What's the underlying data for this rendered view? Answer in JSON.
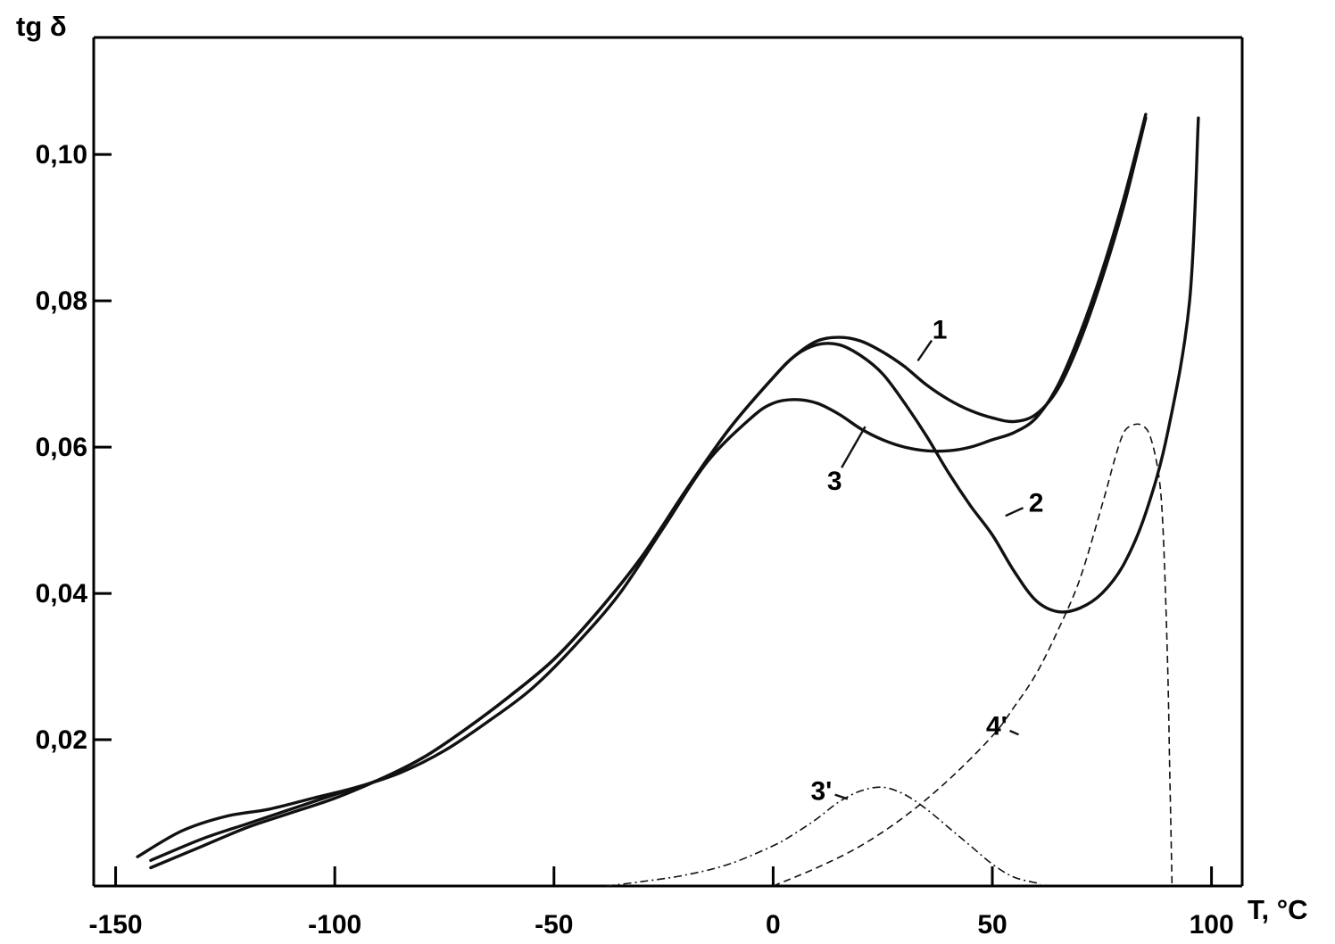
{
  "chart_data": {
    "type": "line",
    "title": "",
    "xlabel": "T, °C",
    "ylabel": "tg δ",
    "xlim": [
      -155,
      107
    ],
    "ylim": [
      0,
      0.116
    ],
    "x_ticks": [
      -150,
      -100,
      -50,
      0,
      50,
      100
    ],
    "x_tick_labels": [
      "-150",
      "-100",
      "-50",
      "0",
      "50",
      "100"
    ],
    "y_ticks": [
      0.02,
      0.04,
      0.06,
      0.08,
      0.1
    ],
    "y_tick_labels": [
      "0,02",
      "0,04",
      "0,06",
      "0,08",
      "0,10"
    ],
    "grid": false,
    "legend": "none",
    "series": [
      {
        "label": "1",
        "style": "solid",
        "x": [
          -142,
          -130,
          -120,
          -110,
          -100,
          -90,
          -80,
          -70,
          -60,
          -50,
          -40,
          -30,
          -20,
          -10,
          0,
          5,
          10,
          15,
          20,
          25,
          30,
          35,
          40,
          45,
          50,
          55,
          60,
          65,
          70,
          75,
          80,
          85
        ],
        "y": [
          0.0035,
          0.0065,
          0.0085,
          0.0105,
          0.0125,
          0.0145,
          0.0175,
          0.0215,
          0.026,
          0.031,
          0.0375,
          0.045,
          0.054,
          0.0625,
          0.0695,
          0.0725,
          0.0745,
          0.075,
          0.0745,
          0.073,
          0.071,
          0.0685,
          0.0665,
          0.065,
          0.064,
          0.0635,
          0.0645,
          0.068,
          0.0745,
          0.083,
          0.093,
          0.105
        ]
      },
      {
        "label": "2",
        "style": "solid",
        "x": [
          -142,
          -130,
          -120,
          -110,
          -100,
          -90,
          -80,
          -70,
          -60,
          -50,
          -40,
          -30,
          -20,
          -10,
          0,
          5,
          10,
          15,
          20,
          25,
          30,
          35,
          40,
          45,
          50,
          55,
          60,
          65,
          70,
          75,
          80,
          85,
          90,
          95,
          97
        ],
        "y": [
          0.0025,
          0.0055,
          0.008,
          0.01,
          0.012,
          0.0145,
          0.0175,
          0.0215,
          0.026,
          0.031,
          0.0375,
          0.045,
          0.054,
          0.0625,
          0.0695,
          0.0725,
          0.074,
          0.074,
          0.0725,
          0.07,
          0.066,
          0.0615,
          0.0565,
          0.052,
          0.048,
          0.043,
          0.039,
          0.0375,
          0.038,
          0.04,
          0.044,
          0.051,
          0.062,
          0.08,
          0.105
        ]
      },
      {
        "label": "3",
        "style": "solid",
        "x": [
          -145,
          -135,
          -125,
          -115,
          -105,
          -95,
          -85,
          -75,
          -65,
          -55,
          -45,
          -35,
          -25,
          -15,
          -5,
          0,
          5,
          10,
          15,
          20,
          25,
          30,
          35,
          40,
          45,
          50,
          55,
          60,
          65,
          70,
          75,
          80,
          85
        ],
        "y": [
          0.004,
          0.0075,
          0.0095,
          0.0105,
          0.012,
          0.0135,
          0.0155,
          0.0185,
          0.0225,
          0.027,
          0.033,
          0.04,
          0.049,
          0.058,
          0.064,
          0.066,
          0.0665,
          0.066,
          0.0645,
          0.0625,
          0.061,
          0.06,
          0.0595,
          0.0595,
          0.06,
          0.061,
          0.062,
          0.064,
          0.0685,
          0.0755,
          0.084,
          0.094,
          0.1055
        ]
      },
      {
        "label": "3'",
        "style": "dashdot",
        "x": [
          -38,
          -30,
          -20,
          -10,
          0,
          5,
          10,
          15,
          20,
          25,
          30,
          35,
          40,
          45,
          50,
          55,
          61
        ],
        "y": [
          0.0,
          0.0006,
          0.0015,
          0.003,
          0.0055,
          0.0072,
          0.0092,
          0.0115,
          0.013,
          0.0135,
          0.0125,
          0.0105,
          0.008,
          0.0055,
          0.003,
          0.0012,
          0.0003
        ]
      },
      {
        "label": "4'",
        "style": "dashed",
        "x": [
          0,
          10,
          20,
          30,
          40,
          50,
          55,
          60,
          65,
          70,
          75,
          78,
          80,
          82,
          84,
          86,
          88,
          89,
          90,
          90.5,
          91
        ],
        "y": [
          0.0,
          0.0025,
          0.0055,
          0.0095,
          0.0145,
          0.0205,
          0.0245,
          0.029,
          0.035,
          0.042,
          0.052,
          0.0585,
          0.062,
          0.063,
          0.063,
          0.0615,
          0.056,
          0.048,
          0.03,
          0.015,
          0.0
        ]
      }
    ],
    "annotations": [
      {
        "text": "1",
        "x": 38,
        "y": 0.0762,
        "anchor_x": 33,
        "anchor_y": 0.0718
      },
      {
        "text": "2",
        "x": 60,
        "y": 0.0525,
        "anchor_x": 53,
        "anchor_y": 0.0506
      },
      {
        "text": "3",
        "x": 14,
        "y": 0.0555,
        "anchor_x": 21,
        "anchor_y": 0.0628
      },
      {
        "text": "4'",
        "x": 51,
        "y": 0.022,
        "anchor_x": 56,
        "anchor_y": 0.0207
      },
      {
        "text": "3'",
        "x": 11,
        "y": 0.0131,
        "anchor_x": 17,
        "anchor_y": 0.0119
      }
    ]
  }
}
